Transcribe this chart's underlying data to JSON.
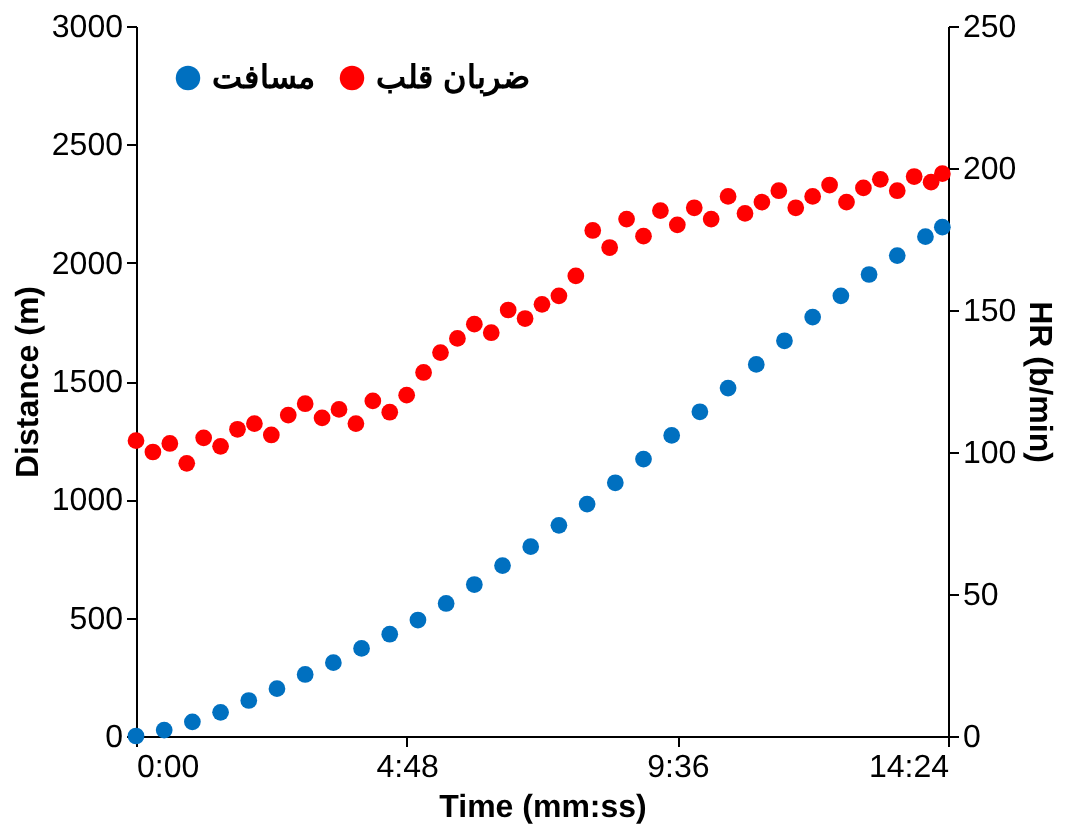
{
  "chart_data": {
    "type": "scatter",
    "xlabel": "Time (mm:ss)",
    "ylabel": "Distance (m)",
    "y2label": "HR (b/min)",
    "marker": "circle",
    "grid": false,
    "legend": "top left",
    "xlim": [
      0,
      14.4
    ],
    "xticks": [
      {
        "value": 0,
        "label": "0:00"
      },
      {
        "value": 4.8,
        "label": "4:48"
      },
      {
        "value": 9.6,
        "label": "9:36"
      },
      {
        "value": 14.4,
        "label": "14:24"
      }
    ],
    "ylim": [
      0,
      3000
    ],
    "yticks": [
      0,
      500,
      1000,
      1500,
      2000,
      2500,
      3000
    ],
    "y2lim": [
      0,
      250
    ],
    "y2ticks": [
      0,
      50,
      100,
      150,
      200,
      250
    ],
    "series": [
      {
        "name": "مسافت",
        "color": "#0070c0",
        "x": [
          0,
          0.5,
          1,
          1.5,
          2,
          2.5,
          3,
          3.5,
          4,
          4.5,
          5,
          5.5,
          6,
          6.5,
          7,
          7.5,
          8,
          8.5,
          9,
          9.5,
          10,
          10.5,
          11,
          11.5,
          12,
          12.5,
          13,
          13.5,
          14,
          14.3
        ],
        "values": [
          0,
          25,
          60,
          100,
          150,
          200,
          260,
          310,
          370,
          430,
          490,
          560,
          640,
          720,
          800,
          890,
          980,
          1070,
          1170,
          1270,
          1370,
          1470,
          1570,
          1670,
          1770,
          1860,
          1950,
          2030,
          2110,
          2150
        ]
      },
      {
        "name": "ضربان قلب",
        "color": "#ff0000",
        "axis": "y2",
        "x": [
          0,
          0.3,
          0.6,
          0.9,
          1.2,
          1.5,
          1.8,
          2.1,
          2.4,
          2.7,
          3,
          3.3,
          3.6,
          3.9,
          4.2,
          4.5,
          4.8,
          5.1,
          5.4,
          5.7,
          6,
          6.3,
          6.6,
          6.9,
          7.2,
          7.5,
          7.8,
          8.1,
          8.4,
          8.7,
          9,
          9.3,
          9.6,
          9.9,
          10.2,
          10.5,
          10.8,
          11.1,
          11.4,
          11.7,
          12,
          12.3,
          12.6,
          12.9,
          13.2,
          13.5,
          13.8,
          14.1,
          14.3
        ],
        "values": [
          104,
          100,
          103,
          96,
          105,
          102,
          108,
          110,
          106,
          113,
          117,
          112,
          115,
          110,
          118,
          114,
          120,
          128,
          135,
          140,
          145,
          142,
          150,
          147,
          152,
          155,
          162,
          178,
          172,
          182,
          176,
          185,
          180,
          186,
          182,
          190,
          184,
          188,
          192,
          186,
          190,
          194,
          188,
          193,
          196,
          192,
          197,
          195,
          198
        ]
      }
    ]
  }
}
